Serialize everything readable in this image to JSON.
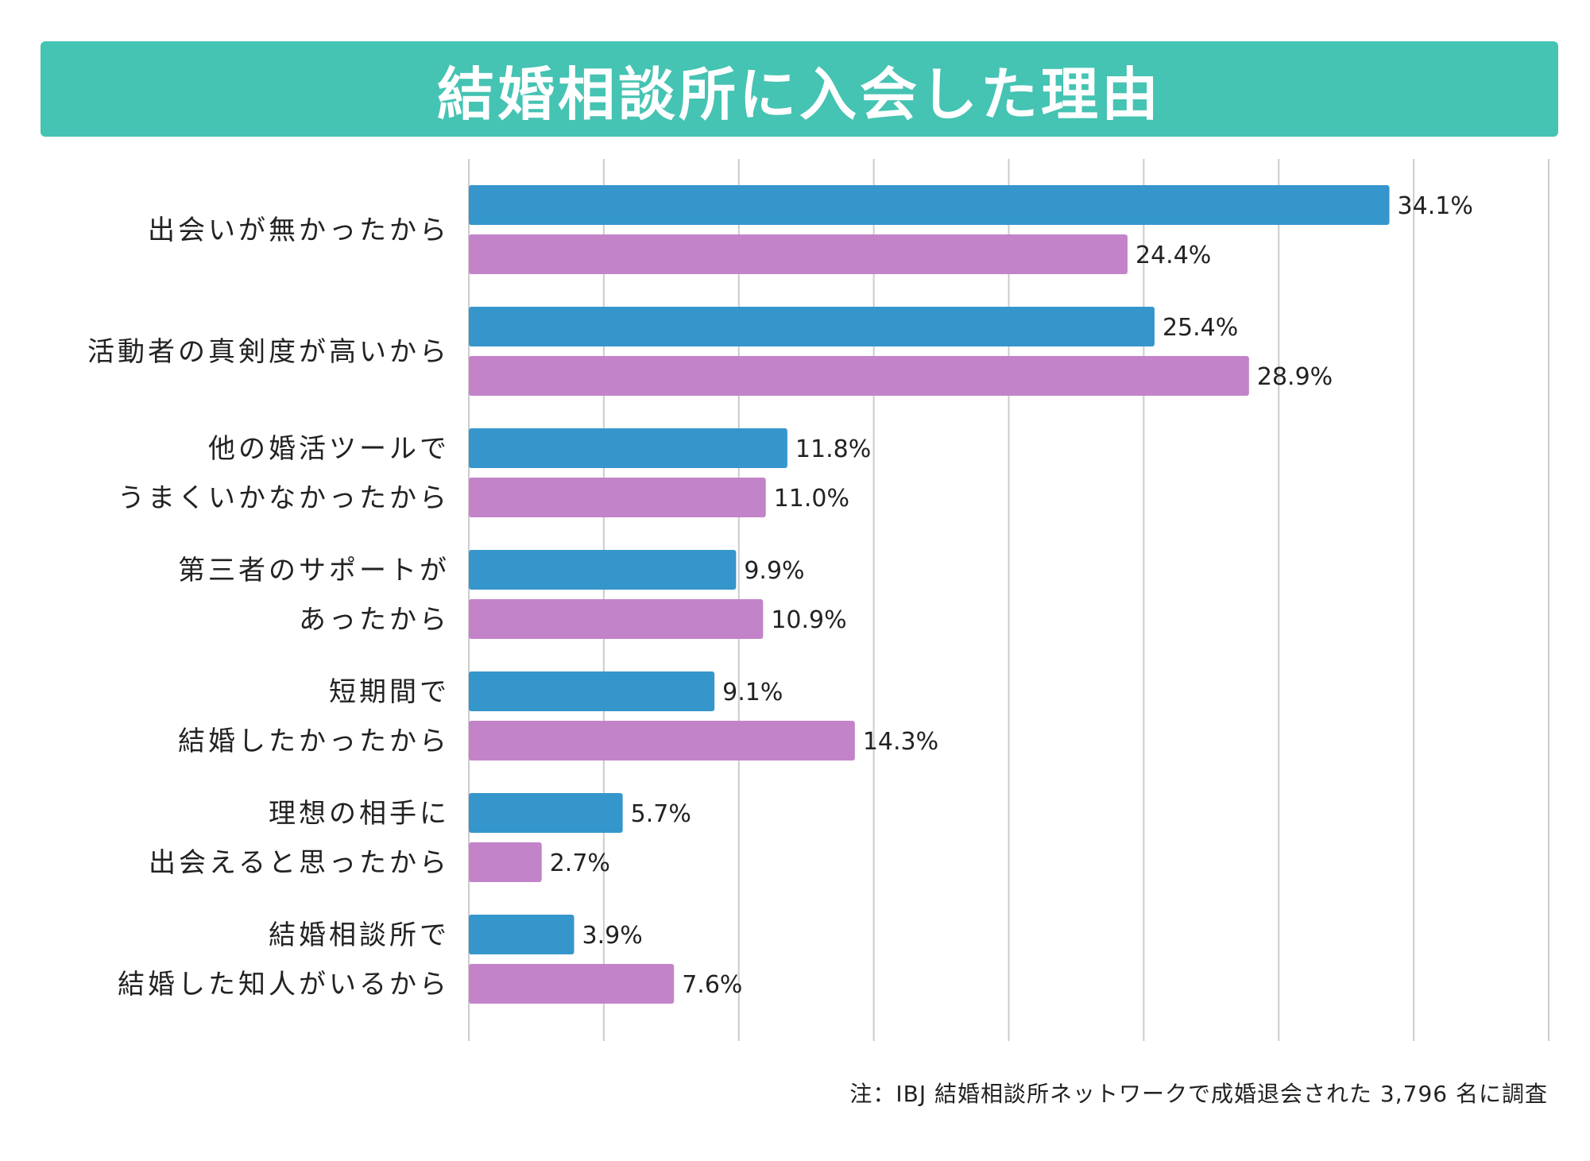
{
  "colors": {
    "banner": "#45c3b3",
    "series_a": "#3596cb",
    "series_b": "#c383c8",
    "grid": "#cccccc"
  },
  "footnote": "注：IBJ 結婚相談所ネットワークで成婚退会された 3,796 名に調査",
  "chart_data": {
    "type": "bar",
    "orientation": "horizontal",
    "title": "結婚相談所に入会した理由",
    "xlim": [
      0,
      40
    ],
    "grid": true,
    "categories": [
      [
        "出会いが無かったから"
      ],
      [
        "活動者の真剣度が高いから"
      ],
      [
        "他の婚活ツールで",
        "うまくいかなかったから"
      ],
      [
        "第三者のサポートが",
        "あったから"
      ],
      [
        "短期間で",
        "結婚したかったから"
      ],
      [
        "理想の相手に",
        "出会えると思ったから"
      ],
      [
        "結婚相談所で",
        "結婚した知人がいるから"
      ]
    ],
    "series": [
      {
        "name": "series-a",
        "values": [
          34.1,
          25.4,
          11.8,
          9.9,
          9.1,
          5.7,
          3.9
        ],
        "labels": [
          "34.1%",
          "25.4%",
          "11.8%",
          "9.9%",
          "9.1%",
          "5.7%",
          "3.9%"
        ]
      },
      {
        "name": "series-b",
        "values": [
          24.4,
          28.9,
          11.0,
          10.9,
          14.3,
          2.7,
          7.6
        ],
        "labels": [
          "24.4%",
          "28.9%",
          "11.0%",
          "10.9%",
          "14.3%",
          "2.7%",
          "7.6%"
        ]
      }
    ]
  }
}
